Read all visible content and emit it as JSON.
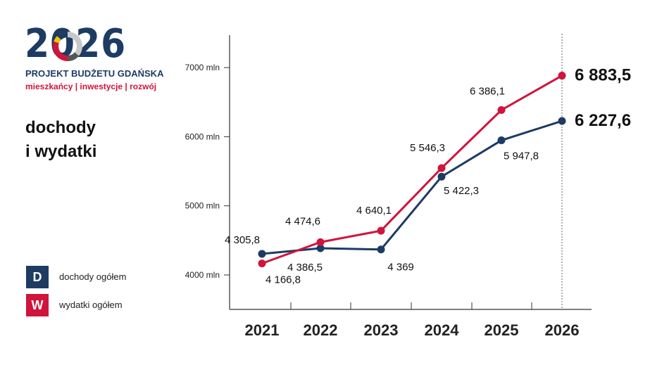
{
  "logo": {
    "year": "2026",
    "subtitle": "PROJEKT BUDŻETU GDAŃSKA",
    "tagline": "mieszkańcy | inwestycje | rozwój"
  },
  "title_line1": "dochody",
  "title_line2": "i wydatki",
  "legend": [
    {
      "badge": "D",
      "label": "dochody ogółem",
      "color": "#1d3b63"
    },
    {
      "badge": "W",
      "label": "wydatki ogółem",
      "color": "#d0143c"
    }
  ],
  "chart_data": {
    "type": "line",
    "categories": [
      "2021",
      "2022",
      "2023",
      "2024",
      "2025",
      "2026"
    ],
    "ylim": [
      3500,
      7500
    ],
    "yticks": [
      {
        "value": 4000,
        "label": "4000 mln"
      },
      {
        "value": 5000,
        "label": "5000 mln"
      },
      {
        "value": 6000,
        "label": "6000 mln"
      },
      {
        "value": 7000,
        "label": "7000 mln"
      }
    ],
    "series": [
      {
        "name": "dochody ogółem",
        "color": "#1d3b63",
        "values": [
          4305.8,
          4386.5,
          4369,
          5422.3,
          5947.8,
          6227.6
        ],
        "labels": [
          "4 305,8",
          "4 386,5",
          "4 369",
          "5 422,3",
          "5 947,8",
          "6 227,6"
        ]
      },
      {
        "name": "wydatki ogółem",
        "color": "#d0143c",
        "values": [
          4166.8,
          4474.6,
          4640.1,
          5546.3,
          6386.1,
          6883.5
        ],
        "labels": [
          "4 166,8",
          "4 474,6",
          "4 640,1",
          "5 546,3",
          "6 386,1",
          "6 883,5"
        ]
      }
    ],
    "grid": false
  }
}
